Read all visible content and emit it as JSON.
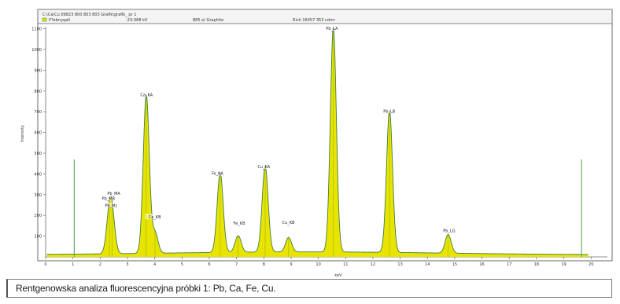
{
  "chart_data": {
    "type": "area",
    "header": {
      "line1": "C:\\Ca\\Cu 09823 800 803 803 Grafik\\grafik_ pr 1",
      "line2_series": "P?ebnyqali",
      "line2_a": "-23-088 kV",
      "line2_b": "885 e/ Graphite",
      "line2_c": "Rich 16457 353 cdmr"
    },
    "ylabel": "Intensity",
    "xlabel": "keV",
    "xlim": [
      0,
      20.6
    ],
    "ylim": [
      0,
      1110
    ],
    "yticks": [
      100,
      200,
      300,
      400,
      500,
      600,
      700,
      800,
      900,
      1000,
      1100
    ],
    "xticks": [
      "0",
      "1",
      "2",
      "3",
      "4",
      "5",
      "6",
      "7",
      "8",
      "9",
      "10",
      "11",
      "12",
      "13",
      "14",
      "15",
      "16",
      "17",
      "18",
      "19",
      "20"
    ],
    "peaks": [
      {
        "label": "Pb_MA",
        "x": 2.34,
        "y": 170
      },
      {
        "label": "Pb_MB",
        "x": 2.44,
        "y": 140
      },
      {
        "label": "Ca_KA",
        "x": 3.69,
        "y": 765
      },
      {
        "label": "Ca_KB",
        "x": 4.01,
        "y": 100
      },
      {
        "label": "Fe_KA",
        "x": 6.4,
        "y": 385
      },
      {
        "label": "Fe_KB",
        "x": 7.06,
        "y": 80
      },
      {
        "label": "Cu_KA",
        "x": 8.05,
        "y": 415
      },
      {
        "label": "Cu_KB",
        "x": 8.91,
        "y": 70
      },
      {
        "label": "Pb_LA",
        "x": 10.55,
        "y": 1085
      },
      {
        "label": "Pb_LB",
        "x": 12.61,
        "y": 685
      },
      {
        "label": "Pb_LG",
        "x": 14.76,
        "y": 90
      }
    ],
    "peak_labels": [
      {
        "text": "Ca_KA",
        "x": 3.7,
        "y": 775
      },
      {
        "text": "Pb_MA",
        "x": 2.5,
        "y": 300
      },
      {
        "text": "Pb_MB",
        "x": 2.3,
        "y": 275
      },
      {
        "text": "Pb_Mz",
        "x": 2.4,
        "y": 240
      },
      {
        "text": "Ca_KB",
        "x": 4.0,
        "y": 185
      },
      {
        "text": "Fe_KA",
        "x": 6.3,
        "y": 395
      },
      {
        "text": "Fe_KB",
        "x": 7.1,
        "y": 155
      },
      {
        "text": "Cu_KA",
        "x": 8.0,
        "y": 428
      },
      {
        "text": "Cu_KB",
        "x": 8.9,
        "y": 160
      },
      {
        "text": "Pb_LA",
        "x": 10.5,
        "y": 1095
      },
      {
        "text": "Pb_LB",
        "x": 12.6,
        "y": 695
      },
      {
        "text": "Pb_LG",
        "x": 14.8,
        "y": 120
      }
    ],
    "markers_x": [
      1.05,
      19.65
    ],
    "colors": {
      "fill": "#e8e400",
      "outline": "#3f7f3f",
      "frame": "#6a6a6a",
      "label": "#222222"
    }
  },
  "caption": "Rentgenowska analiza fluorescencyjna próbki 1: Pb, Ca, Fe, Cu."
}
